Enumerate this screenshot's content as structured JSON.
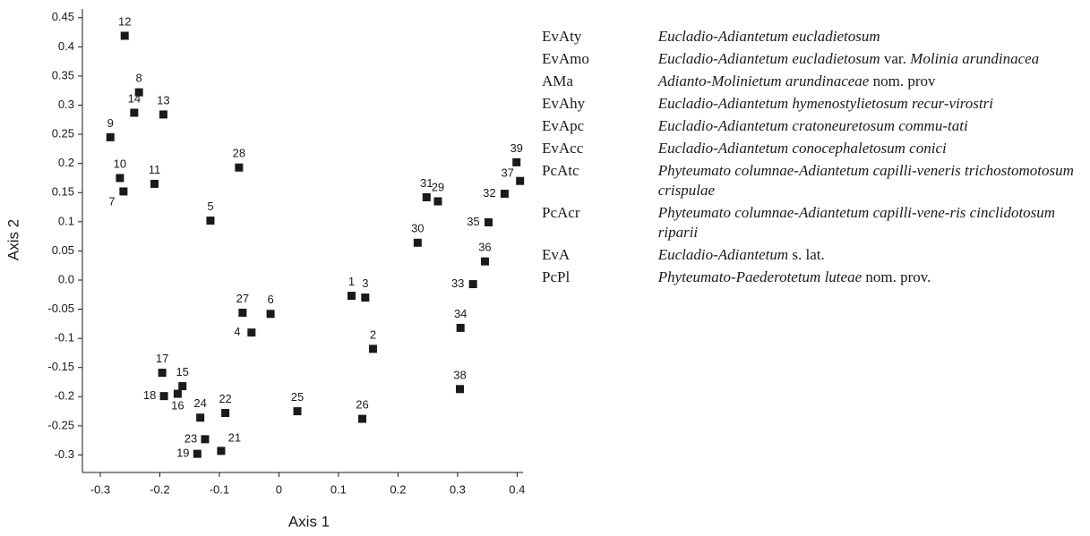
{
  "chart_data": {
    "type": "scatter",
    "xlabel": "Axis 1",
    "ylabel": "Axis 2",
    "labels": [
      "1",
      "2",
      "3",
      "4",
      "5",
      "6",
      "7",
      "8",
      "9",
      "10",
      "11",
      "12",
      "13",
      "14",
      "15",
      "16",
      "17",
      "18",
      "19",
      "21",
      "22",
      "23",
      "24",
      "25",
      "26",
      "27",
      "28",
      "29",
      "30",
      "31",
      "32",
      "33",
      "34",
      "35",
      "36",
      "37",
      "38",
      "39"
    ],
    "x": [
      0.122,
      0.158,
      0.145,
      -0.046,
      -0.115,
      -0.014,
      -0.261,
      -0.235,
      -0.283,
      -0.267,
      -0.209,
      -0.259,
      -0.194,
      -0.243,
      -0.162,
      -0.17,
      -0.196,
      -0.193,
      -0.137,
      -0.097,
      -0.09,
      -0.124,
      -0.132,
      0.031,
      0.14,
      -0.061,
      -0.067,
      0.267,
      0.233,
      0.248,
      0.379,
      0.326,
      0.305,
      0.352,
      0.346,
      0.405,
      0.304,
      0.399
    ],
    "values": [
      -0.027,
      -0.118,
      -0.03,
      -0.09,
      0.102,
      -0.058,
      0.152,
      0.322,
      0.245,
      0.175,
      0.165,
      0.419,
      0.284,
      0.287,
      -0.182,
      -0.195,
      -0.159,
      -0.199,
      -0.298,
      -0.293,
      -0.228,
      -0.273,
      -0.236,
      -0.225,
      -0.238,
      -0.056,
      0.193,
      0.135,
      0.064,
      0.142,
      0.148,
      -0.007,
      -0.082,
      0.099,
      0.032,
      0.17,
      -0.187,
      0.202
    ],
    "color": "#1a1a1a",
    "xlim": [
      -0.33,
      0.41
    ],
    "ylim": [
      -0.33,
      0.465
    ],
    "xticks": [
      -0.3,
      -0.2,
      -0.1,
      0,
      0.1,
      0.2,
      0.3,
      0.4
    ],
    "yticks": [
      0.45,
      0.4,
      0.35,
      0.3,
      0.25,
      0.2,
      0.15,
      0.1,
      0.05,
      {
        "value": 0,
        "label": "0.0"
      },
      -0.05,
      -0.1,
      -0.15,
      -0.2,
      -0.25,
      -0.3
    ]
  },
  "legend_table": {
    "rows": [
      {
        "code": "EvAty",
        "desc": [
          {
            "text": "Eucladio-Adiantetum eucladietosum",
            "italic": true
          }
        ]
      },
      {
        "code": "EvAmo",
        "desc": [
          {
            "text": "Eucladio-Adiantetum eucladietosum",
            "italic": true
          },
          {
            "text": " var. ",
            "italic": false
          },
          {
            "text": "Molinia arundinacea",
            "italic": true
          }
        ]
      },
      {
        "code": "AMa",
        "desc": [
          {
            "text": "Adianto-Molinietum arundinaceae",
            "italic": true
          },
          {
            "text": " nom. prov",
            "italic": false
          }
        ]
      },
      {
        "code": "EvAhy",
        "desc": [
          {
            "text": "Eucladio-Adiantetum hymenostylietosum recur-virostri",
            "italic": true
          }
        ]
      },
      {
        "code": "EvApc",
        "desc": [
          {
            "text": "Eucladio-Adiantetum cratoneuretosum commu-tati",
            "italic": true
          }
        ]
      },
      {
        "code": "EvAcc",
        "desc": [
          {
            "text": "Eucladio-Adiantetum conocephaletosum conici",
            "italic": true
          }
        ]
      },
      {
        "code": "PcAtc",
        "desc": [
          {
            "text": "Phyteumato columnae-Adiantetum capilli-veneris trichostomotosum crispulae",
            "italic": true
          }
        ]
      },
      {
        "code": "PcAcr",
        "desc": [
          {
            "text": "Phyteumato columnae-Adiantetum capilli-vene-ris cinclidotosum riparii",
            "italic": true
          }
        ]
      },
      {
        "code": "EvA",
        "desc": [
          {
            "text": "Eucladio-Adiantetum",
            "italic": true
          },
          {
            "text": " s. lat.",
            "italic": false
          }
        ]
      },
      {
        "code": "PcPl",
        "desc": [
          {
            "text": "Phyteumato-Paederotetum luteae",
            "italic": true
          },
          {
            "text": " nom. prov.",
            "italic": false
          }
        ]
      }
    ]
  }
}
